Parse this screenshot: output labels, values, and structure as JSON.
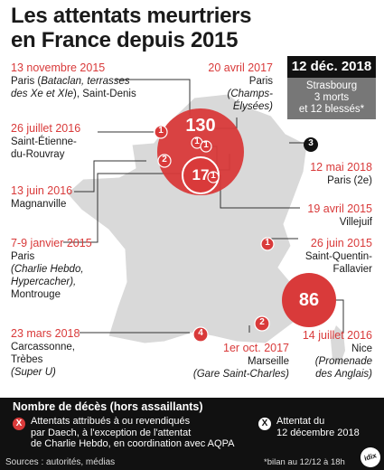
{
  "title": {
    "line1": "Les attentats meurtriers",
    "line2": "en France depuis 2015"
  },
  "callout": {
    "date": "12 déc. 2018",
    "city": "Strasbourg",
    "line2": "3 morts",
    "line3": "et 12 blessés*"
  },
  "bubbles": {
    "paris_total": "130",
    "nice_total": "86",
    "magnanville_area": "17"
  },
  "markers": {
    "one": "1",
    "two": "2",
    "three": "3",
    "four": "4"
  },
  "labels": {
    "paris2015_date": "13 novembre 2015",
    "paris2015_l1": "Paris (",
    "paris2015_l1_it": "Bataclan, terrasses",
    "paris2015_l2_it": "des Xe et XIe",
    "paris2015_l2": "), Saint-Denis",
    "champs_date": "20 avril 2017",
    "champs_l1": "Paris",
    "champs_l2": "(Champs-",
    "champs_l3": "Élysées)",
    "stetienne_date": "26 juillet 2016",
    "stetienne_l1": "Saint-Étienne-",
    "stetienne_l2": "du-Rouvray",
    "magnanville_date": "13 juin 2016",
    "magnanville_l1": "Magnanville",
    "paris2e_date": "12 mai 2018",
    "paris2e_l1": "Paris (2e)",
    "villejuif_date": "19 avril 2015",
    "villejuif_l1": "Villejuif",
    "charlie_date": "7-9 janvier 2015",
    "charlie_l1": "Paris",
    "charlie_l2": "(Charlie Hebdo,",
    "charlie_l3": "Hypercacher),",
    "charlie_l4": "Montrouge",
    "stquentin_date": "26 juin 2015",
    "stquentin_l1": "Saint-Quentin-",
    "stquentin_l2": "Fallavier",
    "trebes_date": "23 mars 2018",
    "trebes_l1": "Carcassonne,",
    "trebes_l2": "Trèbes",
    "trebes_l3": "(Super U)",
    "marseille_date": "1er oct. 2017",
    "marseille_l1": "Marseille",
    "marseille_l2": "(Gare Saint-Charles)",
    "nice_date": "14 juillet 2016",
    "nice_l1": "Nice",
    "nice_l2": "(Promenade",
    "nice_l3": "des Anglais)"
  },
  "legend": {
    "title": "Nombre de décès (hors assaillants)",
    "red_symbol": "X",
    "red_l1": "Attentats attribués à ou revendiqués",
    "red_l2": "par Daech,  à l'exception de l'attentat",
    "red_l3": "de Charlie Hebdo, en coordination avec AQPA",
    "white_symbol": "X",
    "white_l1": "Attentat du",
    "white_l2": "12 décembre 2018",
    "source": "Sources : autorités, médias",
    "note": "*bilan au 12/12 à 18h",
    "logo": "idix"
  },
  "colors": {
    "accent": "#d93a3a",
    "map": "#d9d9d9",
    "dark": "#111111",
    "callout": "#777777"
  }
}
